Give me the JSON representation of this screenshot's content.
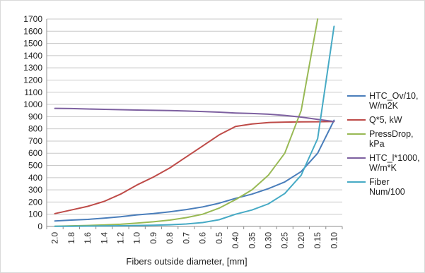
{
  "chart_data": {
    "type": "line",
    "title": "",
    "xlabel": "Fibers outside diameter, [mm]",
    "ylabel": "",
    "ylim": [
      0,
      1700
    ],
    "y_ticks": [
      0,
      100,
      200,
      300,
      400,
      500,
      600,
      700,
      800,
      900,
      1000,
      1100,
      1200,
      1300,
      1400,
      1500,
      1600,
      1700
    ],
    "categories": [
      "2.0",
      "1.8",
      "1.6",
      "1.4",
      "1.2",
      "1.0",
      "0.9",
      "0.8",
      "0.7",
      "0.6",
      "0.5",
      "0.40",
      "0.35",
      "0.30",
      "0.25",
      "0.20",
      "0.15",
      "0.10"
    ],
    "grid": "horizontal",
    "legend_position": "right",
    "series": [
      {
        "name": "HTC_Ov/10, W/m2K",
        "label_lines": [
          "HTC_Ov/10,",
          "W/m2K"
        ],
        "color": "#4a7ebb",
        "values": [
          45,
          52,
          58,
          68,
          80,
          95,
          105,
          120,
          138,
          160,
          190,
          230,
          265,
          310,
          365,
          450,
          600,
          870
        ]
      },
      {
        "name": "Q*5, kW",
        "label_lines": [
          "Q*5, kW"
        ],
        "color": "#be4b48",
        "values": [
          105,
          135,
          165,
          205,
          265,
          340,
          405,
          480,
          570,
          660,
          750,
          820,
          840,
          852,
          855,
          857,
          858,
          860
        ]
      },
      {
        "name": "PressDrop, kPa",
        "label_lines": [
          "PressDrop,",
          "kPa"
        ],
        "color": "#98b954",
        "values": [
          2,
          5,
          8,
          12,
          18,
          28,
          38,
          52,
          72,
          100,
          150,
          220,
          300,
          420,
          600,
          950,
          1700,
          null
        ]
      },
      {
        "name": "HTC_l*1000, W/m*K",
        "label_lines": [
          "HTC_l*1000,",
          "W/m*K"
        ],
        "color": "#7d60a0",
        "values": [
          968,
          966,
          963,
          960,
          957,
          954,
          952,
          950,
          946,
          942,
          937,
          930,
          926,
          920,
          910,
          896,
          878,
          860
        ]
      },
      {
        "name": "Fiber Num/100",
        "label_lines": [
          "Fiber",
          "Num/100"
        ],
        "color": "#46aac5",
        "values": [
          1,
          2,
          3,
          4,
          6,
          8,
          10,
          14,
          20,
          32,
          55,
          100,
          135,
          185,
          270,
          420,
          720,
          1640
        ]
      }
    ]
  }
}
